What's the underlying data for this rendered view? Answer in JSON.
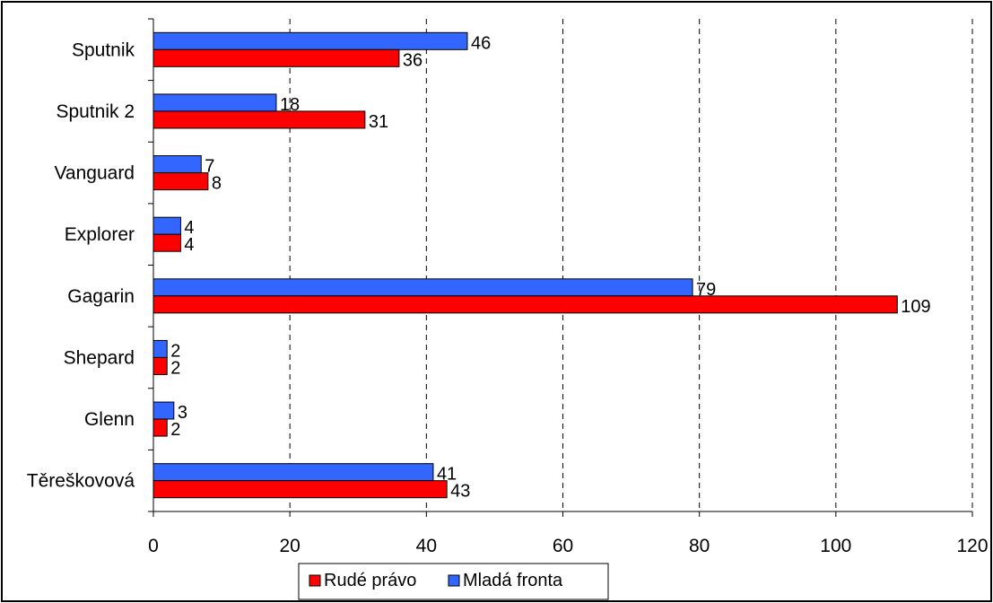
{
  "chart_data": {
    "type": "bar",
    "orientation": "horizontal",
    "title": "",
    "xlabel": "",
    "ylabel": "",
    "categories": [
      "Sputnik",
      "Sputnik 2",
      "Vanguard",
      "Explorer",
      "Gagarin",
      "Shepard",
      "Glenn",
      "Těreškovová"
    ],
    "series": [
      {
        "name": "Mladá fronta",
        "color": "#3366ff",
        "values": [
          46,
          18,
          7,
          4,
          79,
          2,
          3,
          41
        ],
        "labels": [
          "46",
          "18",
          "7",
          "4",
          "79",
          "2",
          "3",
          "41"
        ]
      },
      {
        "name": "Rudé právo",
        "color": "#ff0000",
        "values": [
          36,
          31,
          8,
          4,
          109,
          2,
          2,
          43
        ],
        "labels": [
          "36",
          "31",
          "8",
          "4",
          "109",
          "2",
          "2",
          "43"
        ]
      }
    ],
    "xlim": [
      0,
      120
    ],
    "xticks": [
      0,
      20,
      40,
      60,
      80,
      100,
      120
    ],
    "xtick_labels": [
      "0",
      "20",
      "40",
      "60",
      "80",
      "100",
      "120"
    ],
    "grid": "vertical dashed",
    "legend": {
      "position": "bottom",
      "entries": [
        {
          "label": "Rudé právo",
          "color": "#ff0000"
        },
        {
          "label": "Mladá fronta",
          "color": "#3366ff"
        }
      ]
    }
  }
}
